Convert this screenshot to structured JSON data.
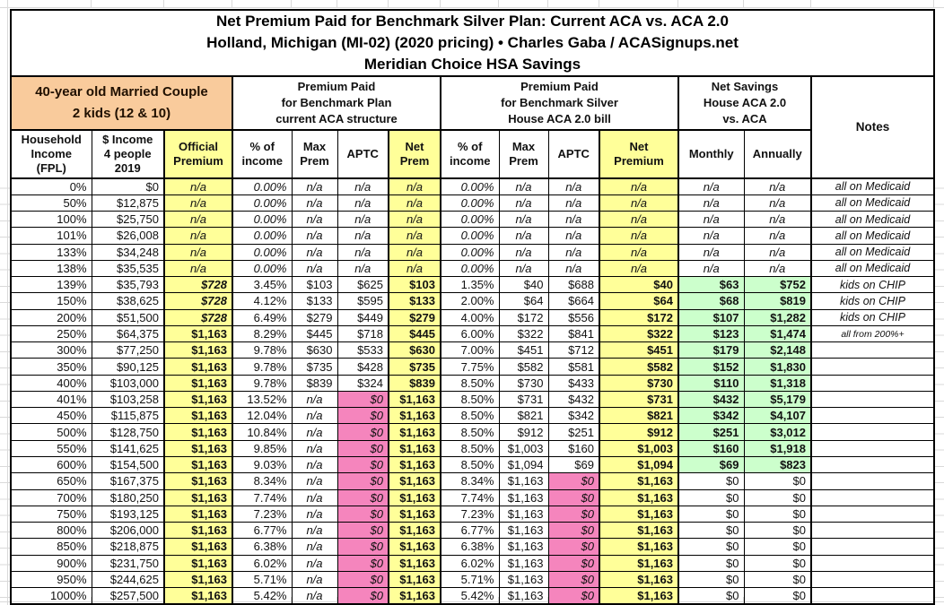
{
  "title": {
    "line1": "Net Premium Paid for Benchmark Silver Plan: Current ACA vs. ACA 2.0",
    "line2": "Holland, Michigan (MI-02) (2020 pricing) • Charles Gaba / ACASignups.net",
    "line3": "Meridian Choice HSA Savings"
  },
  "groups": {
    "household": "40-year old Married Couple\n2 kids (12 & 10)",
    "current_aca": "Premium Paid\nfor Benchmark Plan\ncurrent ACA structure",
    "aca20": "Premium Paid\nfor Benchmark Silver\nHouse ACA 2.0 bill",
    "savings": "Net Savings\nHouse ACA 2.0\nvs. ACA",
    "notes": "Notes"
  },
  "columns": [
    "Household\nIncome\n(FPL)",
    "$ Income\n4 people\n2019",
    "Official\nPremium",
    "% of\nincome",
    "Max\nPrem",
    "APTC",
    "Net\nPrem",
    "% of\nincome",
    "Max\nPrem",
    "APTC",
    "Net\nPremium",
    "Monthly",
    "Annually"
  ],
  "colors": {
    "accent_orange": "#F9CB9C",
    "highlight_yellow": "#FFFF99",
    "highlight_pink": "#F585BD",
    "highlight_green": "#CCFFCC"
  },
  "rows": [
    {
      "cells": [
        "0%",
        "$0",
        "n/a",
        "0.00%",
        "n/a",
        "n/a",
        "n/a",
        "0.00%",
        "n/a",
        "n/a",
        "n/a",
        "n/a",
        "n/a",
        "all on Medicaid"
      ]
    },
    {
      "cells": [
        "50%",
        "$12,875",
        "n/a",
        "0.00%",
        "n/a",
        "n/a",
        "n/a",
        "0.00%",
        "n/a",
        "n/a",
        "n/a",
        "n/a",
        "n/a",
        "all on Medicaid"
      ]
    },
    {
      "cells": [
        "100%",
        "$25,750",
        "n/a",
        "0.00%",
        "n/a",
        "n/a",
        "n/a",
        "0.00%",
        "n/a",
        "n/a",
        "n/a",
        "n/a",
        "n/a",
        "all on Medicaid"
      ]
    },
    {
      "cells": [
        "101%",
        "$26,008",
        "n/a",
        "0.00%",
        "n/a",
        "n/a",
        "n/a",
        "0.00%",
        "n/a",
        "n/a",
        "n/a",
        "n/a",
        "n/a",
        "all on Medicaid"
      ]
    },
    {
      "cells": [
        "133%",
        "$34,248",
        "n/a",
        "0.00%",
        "n/a",
        "n/a",
        "n/a",
        "0.00%",
        "n/a",
        "n/a",
        "n/a",
        "n/a",
        "n/a",
        "all on Medicaid"
      ]
    },
    {
      "cells": [
        "138%",
        "$35,535",
        "n/a",
        "0.00%",
        "n/a",
        "n/a",
        "n/a",
        "0.00%",
        "n/a",
        "n/a",
        "n/a",
        "n/a",
        "n/a",
        "all on Medicaid"
      ]
    },
    {
      "cells": [
        "139%",
        "$35,793",
        "$728",
        "3.45%",
        "$103",
        "$625",
        "$103",
        "1.35%",
        "$40",
        "$688",
        "$40",
        "$63",
        "$752",
        "kids on CHIP"
      ]
    },
    {
      "cells": [
        "150%",
        "$38,625",
        "$728",
        "4.12%",
        "$133",
        "$595",
        "$133",
        "2.00%",
        "$64",
        "$664",
        "$64",
        "$68",
        "$819",
        "kids on CHIP"
      ]
    },
    {
      "cells": [
        "200%",
        "$51,500",
        "$728",
        "6.49%",
        "$279",
        "$449",
        "$279",
        "4.00%",
        "$172",
        "$556",
        "$172",
        "$107",
        "$1,282",
        "kids on CHIP"
      ]
    },
    {
      "cells": [
        "250%",
        "$64,375",
        "$1,163",
        "8.29%",
        "$445",
        "$718",
        "$445",
        "6.00%",
        "$322",
        "$841",
        "$322",
        "$123",
        "$1,474",
        "all from 200%+"
      ]
    },
    {
      "cells": [
        "300%",
        "$77,250",
        "$1,163",
        "9.78%",
        "$630",
        "$533",
        "$630",
        "7.00%",
        "$451",
        "$712",
        "$451",
        "$179",
        "$2,148",
        ""
      ]
    },
    {
      "cells": [
        "350%",
        "$90,125",
        "$1,163",
        "9.78%",
        "$735",
        "$428",
        "$735",
        "7.75%",
        "$582",
        "$581",
        "$582",
        "$152",
        "$1,830",
        ""
      ]
    },
    {
      "cells": [
        "400%",
        "$103,000",
        "$1,163",
        "9.78%",
        "$839",
        "$324",
        "$839",
        "8.50%",
        "$730",
        "$433",
        "$730",
        "$110",
        "$1,318",
        ""
      ]
    },
    {
      "cells": [
        "401%",
        "$103,258",
        "$1,163",
        "13.52%",
        "n/a",
        "$0",
        "$1,163",
        "8.50%",
        "$731",
        "$432",
        "$731",
        "$432",
        "$5,179",
        ""
      ]
    },
    {
      "cells": [
        "450%",
        "$115,875",
        "$1,163",
        "12.04%",
        "n/a",
        "$0",
        "$1,163",
        "8.50%",
        "$821",
        "$342",
        "$821",
        "$342",
        "$4,107",
        ""
      ]
    },
    {
      "cells": [
        "500%",
        "$128,750",
        "$1,163",
        "10.84%",
        "n/a",
        "$0",
        "$1,163",
        "8.50%",
        "$912",
        "$251",
        "$912",
        "$251",
        "$3,012",
        ""
      ]
    },
    {
      "cells": [
        "550%",
        "$141,625",
        "$1,163",
        "9.85%",
        "n/a",
        "$0",
        "$1,163",
        "8.50%",
        "$1,003",
        "$160",
        "$1,003",
        "$160",
        "$1,918",
        ""
      ]
    },
    {
      "cells": [
        "600%",
        "$154,500",
        "$1,163",
        "9.03%",
        "n/a",
        "$0",
        "$1,163",
        "8.50%",
        "$1,094",
        "$69",
        "$1,094",
        "$69",
        "$823",
        ""
      ]
    },
    {
      "cells": [
        "650%",
        "$167,375",
        "$1,163",
        "8.34%",
        "n/a",
        "$0",
        "$1,163",
        "8.34%",
        "$1,163",
        "$0",
        "$1,163",
        "$0",
        "$0",
        ""
      ]
    },
    {
      "cells": [
        "700%",
        "$180,250",
        "$1,163",
        "7.74%",
        "n/a",
        "$0",
        "$1,163",
        "7.74%",
        "$1,163",
        "$0",
        "$1,163",
        "$0",
        "$0",
        ""
      ]
    },
    {
      "cells": [
        "750%",
        "$193,125",
        "$1,163",
        "7.23%",
        "n/a",
        "$0",
        "$1,163",
        "7.23%",
        "$1,163",
        "$0",
        "$1,163",
        "$0",
        "$0",
        ""
      ]
    },
    {
      "cells": [
        "800%",
        "$206,000",
        "$1,163",
        "6.77%",
        "n/a",
        "$0",
        "$1,163",
        "6.77%",
        "$1,163",
        "$0",
        "$1,163",
        "$0",
        "$0",
        ""
      ]
    },
    {
      "cells": [
        "850%",
        "$218,875",
        "$1,163",
        "6.38%",
        "n/a",
        "$0",
        "$1,163",
        "6.38%",
        "$1,163",
        "$0",
        "$1,163",
        "$0",
        "$0",
        ""
      ]
    },
    {
      "cells": [
        "900%",
        "$231,750",
        "$1,163",
        "6.02%",
        "n/a",
        "$0",
        "$1,163",
        "6.02%",
        "$1,163",
        "$0",
        "$1,163",
        "$0",
        "$0",
        ""
      ]
    },
    {
      "cells": [
        "950%",
        "$244,625",
        "$1,163",
        "5.71%",
        "n/a",
        "$0",
        "$1,163",
        "5.71%",
        "$1,163",
        "$0",
        "$1,163",
        "$0",
        "$0",
        ""
      ]
    },
    {
      "cells": [
        "1000%",
        "$257,500",
        "$1,163",
        "5.42%",
        "n/a",
        "$0",
        "$1,163",
        "5.42%",
        "$1,163",
        "$0",
        "$1,163",
        "$0",
        "$0",
        ""
      ]
    }
  ]
}
